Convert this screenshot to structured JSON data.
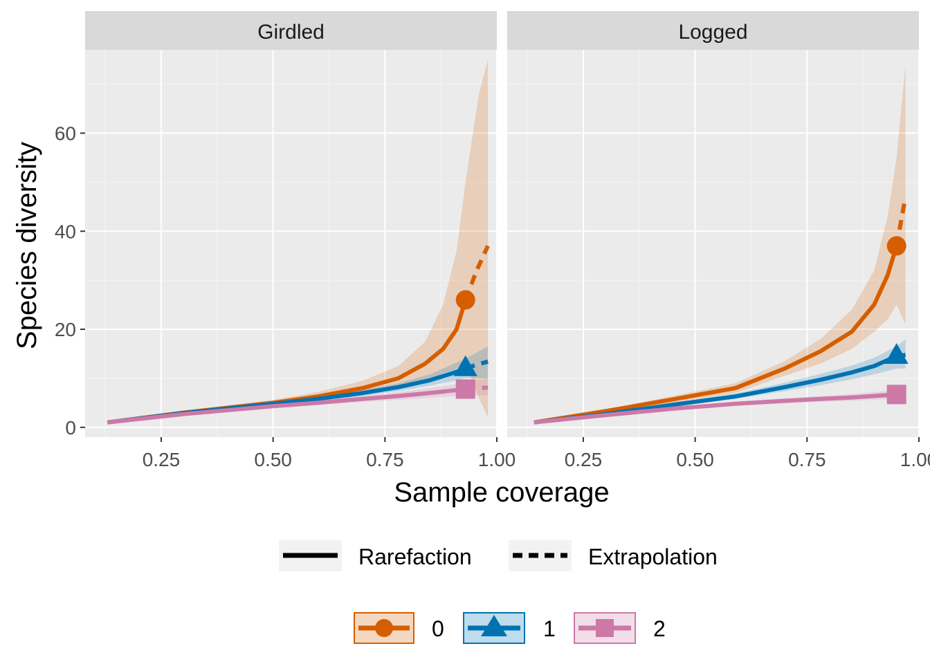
{
  "chart_data": {
    "type": "line",
    "title": "",
    "xlabel": "Sample coverage",
    "ylabel": "Species diversity",
    "xlim": [
      0.08,
      1.0
    ],
    "ylim": [
      -2,
      77
    ],
    "x_ticks": [
      0.25,
      0.5,
      0.75,
      1.0
    ],
    "x_tick_labels": [
      "0.25",
      "0.50",
      "0.75",
      "1.00"
    ],
    "y_ticks": [
      0,
      20,
      40,
      60
    ],
    "y_tick_labels": [
      "0",
      "20",
      "40",
      "60"
    ],
    "grid": true,
    "line_legend": [
      {
        "label": "Rarefaction",
        "style": "solid"
      },
      {
        "label": "Extrapolation",
        "style": "dashed"
      }
    ],
    "order_legend": [
      {
        "label": "0",
        "color": "#D55E00",
        "shape": "circle"
      },
      {
        "label": "1",
        "color": "#0072B2",
        "shape": "triangle"
      },
      {
        "label": "2",
        "color": "#CC79A7",
        "shape": "square"
      }
    ],
    "panels": [
      {
        "name": "Girdled",
        "series": [
          {
            "order": "0",
            "color": "#D55E00",
            "rarefaction": [
              [
                0.13,
                1
              ],
              [
                0.3,
                3
              ],
              [
                0.5,
                5
              ],
              [
                0.6,
                6.3
              ],
              [
                0.7,
                8
              ],
              [
                0.78,
                10
              ],
              [
                0.84,
                13
              ],
              [
                0.88,
                16
              ],
              [
                0.91,
                20
              ],
              [
                0.93,
                26
              ]
            ],
            "lower": [
              [
                0.13,
                0.8
              ],
              [
                0.3,
                2.6
              ],
              [
                0.5,
                4.5
              ],
              [
                0.6,
                5.5
              ],
              [
                0.7,
                6.8
              ],
              [
                0.78,
                8
              ],
              [
                0.84,
                9.5
              ],
              [
                0.88,
                11
              ],
              [
                0.91,
                12
              ],
              [
                0.93,
                13
              ],
              [
                0.96,
                6
              ],
              [
                0.98,
                2
              ]
            ],
            "upper": [
              [
                0.13,
                1.2
              ],
              [
                0.3,
                3.4
              ],
              [
                0.5,
                5.6
              ],
              [
                0.6,
                7.2
              ],
              [
                0.7,
                9.5
              ],
              [
                0.78,
                12.5
              ],
              [
                0.84,
                17.5
              ],
              [
                0.88,
                25
              ],
              [
                0.91,
                36
              ],
              [
                0.93,
                50
              ],
              [
                0.96,
                68
              ],
              [
                0.98,
                75
              ]
            ],
            "extrapolation": [
              [
                0.93,
                26
              ],
              [
                0.955,
                32
              ],
              [
                0.98,
                37
              ]
            ],
            "observed": [
              0.93,
              26
            ]
          },
          {
            "order": "1",
            "color": "#0072B2",
            "rarefaction": [
              [
                0.13,
                1
              ],
              [
                0.3,
                2.9
              ],
              [
                0.5,
                4.8
              ],
              [
                0.6,
                5.8
              ],
              [
                0.7,
                7
              ],
              [
                0.78,
                8.2
              ],
              [
                0.85,
                9.6
              ],
              [
                0.9,
                11
              ],
              [
                0.93,
                12
              ]
            ],
            "lower": [
              [
                0.13,
                0.9
              ],
              [
                0.3,
                2.7
              ],
              [
                0.5,
                4.5
              ],
              [
                0.6,
                5.4
              ],
              [
                0.7,
                6.4
              ],
              [
                0.78,
                7.4
              ],
              [
                0.85,
                8.5
              ],
              [
                0.9,
                9.4
              ],
              [
                0.93,
                10
              ],
              [
                0.98,
                10
              ]
            ],
            "upper": [
              [
                0.13,
                1.1
              ],
              [
                0.3,
                3.1
              ],
              [
                0.5,
                5.1
              ],
              [
                0.6,
                6.2
              ],
              [
                0.7,
                7.6
              ],
              [
                0.78,
                9
              ],
              [
                0.85,
                10.8
              ],
              [
                0.9,
                12.8
              ],
              [
                0.93,
                14
              ],
              [
                0.98,
                16.5
              ]
            ],
            "extrapolation": [
              [
                0.93,
                12
              ],
              [
                0.955,
                12.8
              ],
              [
                0.98,
                13.4
              ]
            ],
            "observed": [
              0.93,
              12
            ]
          },
          {
            "order": "2",
            "color": "#CC79A7",
            "rarefaction": [
              [
                0.13,
                1
              ],
              [
                0.3,
                2.7
              ],
              [
                0.5,
                4.3
              ],
              [
                0.6,
                5
              ],
              [
                0.7,
                5.8
              ],
              [
                0.78,
                6.4
              ],
              [
                0.85,
                7
              ],
              [
                0.9,
                7.5
              ],
              [
                0.93,
                7.8
              ]
            ],
            "lower": [
              [
                0.13,
                0.9
              ],
              [
                0.3,
                2.5
              ],
              [
                0.5,
                4
              ],
              [
                0.6,
                4.6
              ],
              [
                0.7,
                5.2
              ],
              [
                0.78,
                5.6
              ],
              [
                0.85,
                6
              ],
              [
                0.9,
                6.3
              ],
              [
                0.93,
                6.5
              ],
              [
                0.98,
                6.5
              ]
            ],
            "upper": [
              [
                0.13,
                1.1
              ],
              [
                0.3,
                2.9
              ],
              [
                0.5,
                4.6
              ],
              [
                0.6,
                5.4
              ],
              [
                0.7,
                6.4
              ],
              [
                0.78,
                7.2
              ],
              [
                0.85,
                8
              ],
              [
                0.9,
                8.7
              ],
              [
                0.93,
                9.2
              ],
              [
                0.98,
                10
              ]
            ],
            "extrapolation": [
              [
                0.93,
                7.8
              ],
              [
                0.955,
                8
              ],
              [
                0.98,
                8.1
              ]
            ],
            "observed": [
              0.93,
              7.8
            ]
          }
        ]
      },
      {
        "name": "Logged",
        "series": [
          {
            "order": "0",
            "color": "#D55E00",
            "rarefaction": [
              [
                0.14,
                1
              ],
              [
                0.3,
                3.3
              ],
              [
                0.45,
                5.7
              ],
              [
                0.59,
                8
              ],
              [
                0.7,
                12
              ],
              [
                0.78,
                15.5
              ],
              [
                0.85,
                19.5
              ],
              [
                0.9,
                25
              ],
              [
                0.93,
                31
              ],
              [
                0.95,
                37
              ]
            ],
            "lower": [
              [
                0.14,
                0.8
              ],
              [
                0.3,
                3
              ],
              [
                0.45,
                5
              ],
              [
                0.59,
                7
              ],
              [
                0.7,
                10.5
              ],
              [
                0.78,
                13
              ],
              [
                0.85,
                16
              ],
              [
                0.9,
                19.5
              ],
              [
                0.93,
                22
              ],
              [
                0.95,
                25
              ],
              [
                0.97,
                21
              ]
            ],
            "upper": [
              [
                0.14,
                1.2
              ],
              [
                0.3,
                3.6
              ],
              [
                0.45,
                6.4
              ],
              [
                0.59,
                9
              ],
              [
                0.7,
                13.5
              ],
              [
                0.78,
                18
              ],
              [
                0.85,
                24
              ],
              [
                0.9,
                32
              ],
              [
                0.93,
                43
              ],
              [
                0.95,
                55
              ],
              [
                0.97,
                74
              ]
            ],
            "extrapolation": [
              [
                0.95,
                37
              ],
              [
                0.96,
                42
              ],
              [
                0.97,
                47
              ]
            ],
            "observed": [
              0.95,
              37
            ]
          },
          {
            "order": "1",
            "color": "#0072B2",
            "rarefaction": [
              [
                0.14,
                1
              ],
              [
                0.3,
                2.7
              ],
              [
                0.45,
                4.6
              ],
              [
                0.59,
                6.3
              ],
              [
                0.7,
                8.2
              ],
              [
                0.78,
                9.7
              ],
              [
                0.85,
                11.2
              ],
              [
                0.9,
                12.5
              ],
              [
                0.95,
                14.5
              ]
            ],
            "lower": [
              [
                0.14,
                0.9
              ],
              [
                0.3,
                2.5
              ],
              [
                0.45,
                4.2
              ],
              [
                0.59,
                5.8
              ],
              [
                0.7,
                7.4
              ],
              [
                0.78,
                8.6
              ],
              [
                0.85,
                9.8
              ],
              [
                0.9,
                10.8
              ],
              [
                0.95,
                12
              ],
              [
                0.97,
                12
              ]
            ],
            "upper": [
              [
                0.14,
                1.1
              ],
              [
                0.3,
                2.9
              ],
              [
                0.45,
                5
              ],
              [
                0.59,
                6.9
              ],
              [
                0.7,
                9.1
              ],
              [
                0.78,
                10.9
              ],
              [
                0.85,
                12.6
              ],
              [
                0.9,
                14.2
              ],
              [
                0.95,
                16.5
              ],
              [
                0.97,
                18
              ]
            ],
            "extrapolation": [
              [
                0.95,
                14.5
              ],
              [
                0.96,
                14.6
              ],
              [
                0.97,
                14.8
              ]
            ],
            "observed": [
              0.95,
              14.5
            ]
          },
          {
            "order": "2",
            "color": "#CC79A7",
            "rarefaction": [
              [
                0.14,
                1
              ],
              [
                0.3,
                2.5
              ],
              [
                0.45,
                3.8
              ],
              [
                0.59,
                4.8
              ],
              [
                0.7,
                5.4
              ],
              [
                0.78,
                5.8
              ],
              [
                0.85,
                6.1
              ],
              [
                0.9,
                6.4
              ],
              [
                0.95,
                6.7
              ]
            ],
            "lower": [
              [
                0.14,
                0.9
              ],
              [
                0.3,
                2.3
              ],
              [
                0.45,
                3.5
              ],
              [
                0.59,
                4.4
              ],
              [
                0.7,
                4.9
              ],
              [
                0.78,
                5.2
              ],
              [
                0.85,
                5.4
              ],
              [
                0.9,
                5.6
              ],
              [
                0.95,
                5.8
              ],
              [
                0.97,
                5.8
              ]
            ],
            "upper": [
              [
                0.14,
                1.1
              ],
              [
                0.3,
                2.7
              ],
              [
                0.45,
                4.1
              ],
              [
                0.59,
                5.2
              ],
              [
                0.7,
                5.9
              ],
              [
                0.78,
                6.4
              ],
              [
                0.85,
                6.8
              ],
              [
                0.9,
                7.2
              ],
              [
                0.95,
                7.6
              ],
              [
                0.97,
                7.8
              ]
            ],
            "extrapolation": [
              [
                0.95,
                6.7
              ],
              [
                0.96,
                6.75
              ],
              [
                0.97,
                6.8
              ]
            ],
            "observed": [
              0.95,
              6.7
            ]
          }
        ]
      }
    ]
  }
}
